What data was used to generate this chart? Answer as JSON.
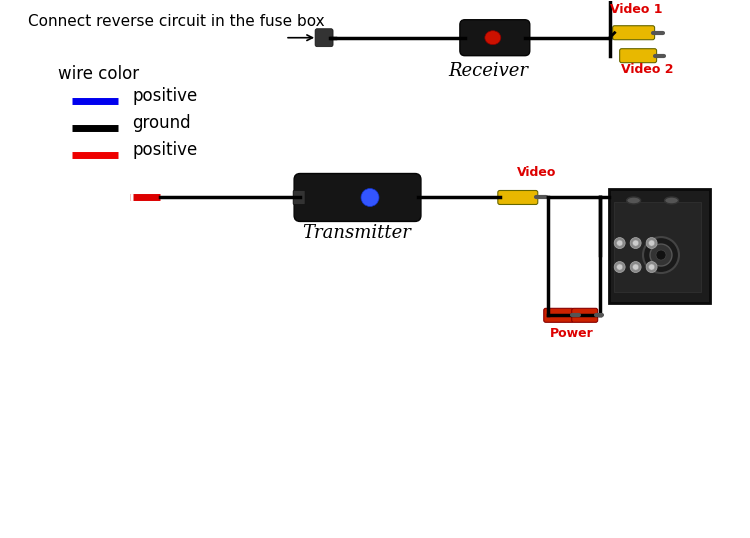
{
  "bg_color": "#ffffff",
  "connect_text": "Connect reverse circuit in the fuse box",
  "wire_color_title": "wire color",
  "legend_items": [
    {
      "color": "#0000ee",
      "label": "positive"
    },
    {
      "color": "#000000",
      "label": "ground"
    },
    {
      "color": "#ee0000",
      "label": "positive"
    }
  ],
  "receiver_label": "Receiver",
  "transmitter_label": "Transmitter",
  "video1_label": "Video 1",
  "video2_label": "Video 2",
  "video_label": "Video",
  "power_label": "Power",
  "label_color_red": "#dd0000",
  "label_color_black": "#000000",
  "rca_yellow": "#e8b800",
  "rca_red": "#cc2200",
  "device_color": "#151515",
  "cam_frame_color": "#1a1a1a"
}
